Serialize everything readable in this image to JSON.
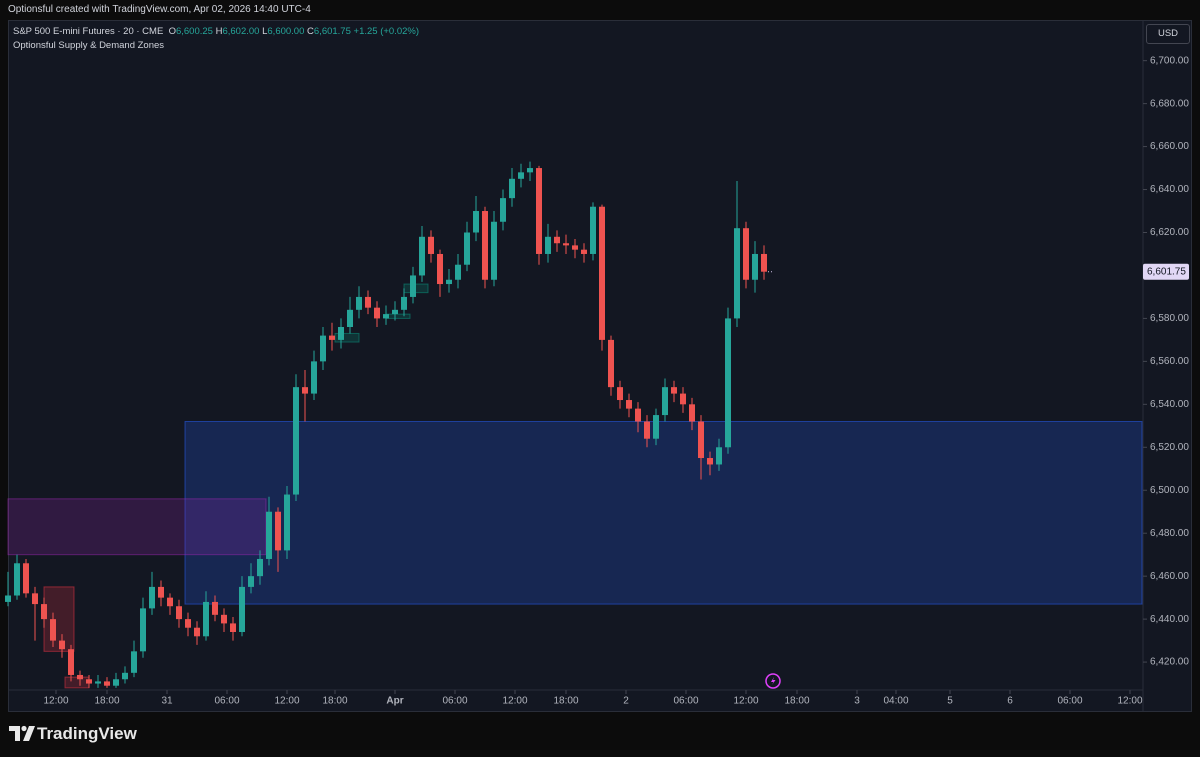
{
  "header": {
    "text": "Optionsful created with TradingView.com, Apr 02, 2026 14:40 UTC-4"
  },
  "footer": {
    "brand": "TradingView"
  },
  "chart_data": {
    "type": "candlestick",
    "title": "S&P 500 E-mini Futures · 20 · CME",
    "indicator": "Optionsful Supply & Demand Zones",
    "currency": "USD",
    "ohlc_header": [
      {
        "key": "O",
        "text": "6,600.25"
      },
      {
        "key": "H",
        "text": "6,602.00"
      },
      {
        "key": "L",
        "text": "6,600.00"
      },
      {
        "key": "C",
        "text": "6,601.75"
      }
    ],
    "change_text": "+1.25 (+0.02%)",
    "up_color": "#26a69a",
    "down_color": "#ef5350",
    "grid": false,
    "x": [
      0,
      3,
      6,
      9,
      12,
      15,
      18,
      21,
      24,
      27,
      30,
      33,
      36,
      39,
      42,
      45,
      48,
      51,
      54,
      57,
      60,
      63,
      66,
      69,
      72,
      75,
      78,
      81,
      84,
      87,
      90,
      93,
      96,
      99,
      102,
      105,
      108,
      111,
      114,
      117,
      120,
      123,
      126,
      129,
      132,
      135,
      138,
      141,
      144,
      147,
      150,
      153,
      156,
      159,
      162,
      165,
      168,
      171,
      174,
      177,
      180,
      183,
      186,
      189,
      192,
      195,
      198,
      201,
      204,
      207,
      210,
      213,
      216,
      219,
      222,
      225,
      228,
      231,
      234,
      237,
      240,
      243,
      246,
      249,
      252
    ],
    "open": [
      6448,
      6451,
      6466,
      6452,
      6447,
      6440,
      6430,
      6426,
      6414,
      6412,
      6410,
      6411,
      6409,
      6412,
      6415,
      6425,
      6445,
      6455,
      6450,
      6446,
      6440,
      6436,
      6432,
      6448,
      6442,
      6438,
      6434,
      6455,
      6460,
      6468,
      6490,
      6472,
      6498,
      6548,
      6545,
      6560,
      6572,
      6570,
      6576,
      6584,
      6590,
      6585,
      6580,
      6582,
      6584,
      6590,
      6600,
      6618,
      6610,
      6596,
      6598,
      6605,
      6620,
      6630,
      6598,
      6625,
      6636,
      6645,
      6648,
      6650,
      6610,
      6618,
      6615,
      6614,
      6612,
      6610,
      6632,
      6570,
      6548,
      6542,
      6538,
      6532,
      6524,
      6535,
      6548,
      6545,
      6540,
      6532,
      6515,
      6512,
      6520,
      6580,
      6622,
      6598,
      6610
    ],
    "high": [
      6462,
      6470,
      6468,
      6455,
      6450,
      6443,
      6433,
      6428,
      6416,
      6414,
      6414,
      6413,
      6415,
      6418,
      6430,
      6450,
      6462,
      6458,
      6452,
      6449,
      6443,
      6439,
      6453,
      6451,
      6445,
      6441,
      6460,
      6466,
      6472,
      6497,
      6492,
      6502,
      6554,
      6556,
      6565,
      6576,
      6578,
      6580,
      6590,
      6595,
      6593,
      6588,
      6586,
      6588,
      6594,
      6604,
      6623,
      6621,
      6612,
      6603,
      6610,
      6625,
      6637,
      6632,
      6630,
      6640,
      6650,
      6652,
      6653,
      6651,
      6624,
      6621,
      6619,
      6617,
      6615,
      6634,
      6633,
      6572,
      6551,
      6545,
      6541,
      6535,
      6538,
      6552,
      6551,
      6548,
      6543,
      6535,
      6518,
      6524,
      6585,
      6644,
      6625,
      6616,
      6614
    ],
    "low": [
      6446,
      6449,
      6450,
      6430,
      6436,
      6427,
      6422,
      6411,
      6409,
      6408,
      6408,
      6408,
      6408,
      6410,
      6413,
      6422,
      6442,
      6446,
      6442,
      6436,
      6432,
      6428,
      6430,
      6439,
      6434,
      6430,
      6432,
      6452,
      6456,
      6465,
      6462,
      6468,
      6495,
      6532,
      6542,
      6556,
      6565,
      6566,
      6573,
      6580,
      6582,
      6576,
      6577,
      6579,
      6581,
      6587,
      6597,
      6606,
      6590,
      6592,
      6594,
      6602,
      6616,
      6594,
      6595,
      6621,
      6632,
      6641,
      6644,
      6605,
      6606,
      6611,
      6610,
      6608,
      6606,
      6607,
      6565,
      6544,
      6538,
      6534,
      6527,
      6520,
      6521,
      6532,
      6541,
      6536,
      6528,
      6505,
      6507,
      6509,
      6517,
      6576,
      6594,
      6592,
      6598
    ],
    "close": [
      6451,
      6466,
      6452,
      6447,
      6440,
      6430,
      6426,
      6414,
      6412,
      6410,
      6411,
      6409,
      6412,
      6415,
      6425,
      6445,
      6455,
      6450,
      6446,
      6440,
      6436,
      6432,
      6448,
      6442,
      6438,
      6434,
      6455,
      6460,
      6468,
      6490,
      6472,
      6498,
      6548,
      6545,
      6560,
      6572,
      6570,
      6576,
      6584,
      6590,
      6585,
      6580,
      6582,
      6584,
      6590,
      6600,
      6618,
      6610,
      6596,
      6598,
      6605,
      6620,
      6630,
      6598,
      6625,
      6636,
      6645,
      6648,
      6650,
      6610,
      6618,
      6615,
      6614,
      6612,
      6610,
      6632,
      6570,
      6548,
      6542,
      6538,
      6532,
      6524,
      6535,
      6548,
      6545,
      6540,
      6532,
      6515,
      6512,
      6520,
      6580,
      6622,
      6598,
      6610,
      6601.75
    ],
    "last_price": {
      "value": 6601.75,
      "label": "6,601.75"
    },
    "zones": [
      {
        "x": [
          59,
          378
        ],
        "y": [
          6447,
          6532
        ],
        "color": "#2962ff"
      },
      {
        "x": [
          0,
          86
        ],
        "y": [
          6470,
          6496
        ],
        "color": "#9c27b0"
      },
      {
        "x": [
          12,
          22
        ],
        "y": [
          6425,
          6455
        ],
        "color": "#f23645"
      },
      {
        "x": [
          19,
          27
        ],
        "y": [
          6408,
          6413
        ],
        "color": "#f23645"
      },
      {
        "x": [
          109,
          117
        ],
        "y": [
          6569,
          6573
        ],
        "color": "#089981"
      },
      {
        "x": [
          126,
          134
        ],
        "y": [
          6580,
          6582
        ],
        "color": "#089981"
      },
      {
        "x": [
          132,
          140
        ],
        "y": [
          6592,
          6596
        ],
        "color": "#089981"
      }
    ],
    "xlim": [
      0,
      378
    ],
    "ylim": [
      6407,
      6718
    ],
    "xticks": [
      {
        "value": 16,
        "label": "12:00"
      },
      {
        "value": 33,
        "label": "18:00"
      },
      {
        "value": 53,
        "label": "31"
      },
      {
        "value": 73,
        "label": "06:00"
      },
      {
        "value": 93,
        "label": "12:00"
      },
      {
        "value": 109,
        "label": "18:00"
      },
      {
        "value": 129,
        "label": "Apr"
      },
      {
        "value": 149,
        "label": "06:00"
      },
      {
        "value": 169,
        "label": "12:00"
      },
      {
        "value": 186,
        "label": "18:00"
      },
      {
        "value": 206,
        "label": "2"
      },
      {
        "value": 226,
        "label": "06:00"
      },
      {
        "value": 246,
        "label": "12:00"
      },
      {
        "value": 263,
        "label": "18:00"
      },
      {
        "value": 283,
        "label": "3"
      },
      {
        "value": 296,
        "label": "04:00"
      },
      {
        "value": 314,
        "label": "5"
      },
      {
        "value": 334,
        "label": "6"
      },
      {
        "value": 354,
        "label": "06:00"
      },
      {
        "value": 374,
        "label": "12:00"
      }
    ],
    "yticks": [
      {
        "value": 6420,
        "label": "6,420.00"
      },
      {
        "value": 6440,
        "label": "6,440.00"
      },
      {
        "value": 6460,
        "label": "6,460.00"
      },
      {
        "value": 6480,
        "label": "6,480.00"
      },
      {
        "value": 6500,
        "label": "6,500.00"
      },
      {
        "value": 6520,
        "label": "6,520.00"
      },
      {
        "value": 6540,
        "label": "6,540.00"
      },
      {
        "value": 6560,
        "label": "6,560.00"
      },
      {
        "value": 6580,
        "label": "6,580.00"
      },
      {
        "value": 6600,
        "label": "6,600.00"
      },
      {
        "value": 6620,
        "label": "6,620.00"
      },
      {
        "value": 6640,
        "label": "6,640.00"
      },
      {
        "value": 6660,
        "label": "6,660.00"
      },
      {
        "value": 6680,
        "label": "6,680.00"
      },
      {
        "value": 6700,
        "label": "6,700.00"
      }
    ]
  }
}
